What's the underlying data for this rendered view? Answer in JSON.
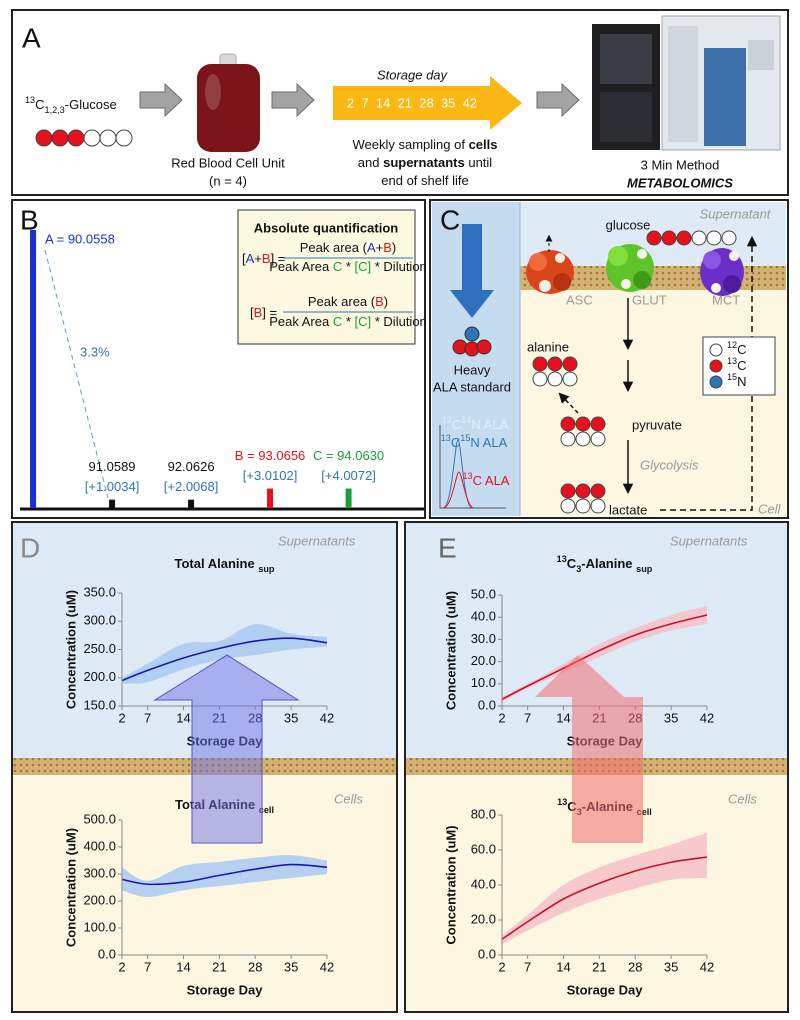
{
  "panel_a": {
    "label": "A",
    "glucose": [
      {
        "text": "13",
        "pos": "sup"
      },
      {
        "text": "C"
      },
      {
        "text": "1,2,3",
        "pos": "sub"
      },
      {
        "text": "-Glucose"
      }
    ],
    "rbc_unit": "Red Blood Cell Unit",
    "n": "(n = 4)",
    "storage_title": "Storage day",
    "storage_days": "2  7  14  21  28  35  42",
    "sampling": [
      [
        {
          "text": "Weekly sampling of "
        },
        {
          "text": "cells",
          "weight": "bold"
        }
      ],
      [
        {
          "text": "and "
        },
        {
          "text": "supernatants",
          "weight": "bold"
        },
        {
          "text": " until"
        }
      ],
      [
        {
          "text": "end of shelf life"
        }
      ]
    ],
    "method": "3 Min Method",
    "metabolomics": "METABOLOMICS"
  },
  "panel_b": {
    "label": "B",
    "box_title": "Absolute quantification",
    "formula_1": {
      "lhs": [
        {
          "text": "["
        },
        {
          "text": "A",
          "color": "#1a2fd0"
        },
        {
          "text": "+"
        },
        {
          "text": "B",
          "color": "#e8101c"
        },
        {
          "text": "] ="
        }
      ],
      "numerator": [
        {
          "text": "Peak area ("
        },
        {
          "text": "A",
          "color": "#1a2fd0"
        },
        {
          "text": "+"
        },
        {
          "text": "B",
          "color": "#e8101c"
        },
        {
          "text": ")"
        }
      ],
      "denominator": [
        {
          "text": "Peak Area "
        },
        {
          "text": "C",
          "color": "#1a9e3a"
        },
        {
          "text": " * "
        },
        {
          "text": "[C]",
          "color": "#1a9e3a"
        },
        {
          "text": " * Dilution"
        }
      ]
    },
    "formula_2": {
      "lhs": [
        {
          "text": "["
        },
        {
          "text": "B",
          "color": "#e8101c"
        },
        {
          "text": "] ="
        }
      ],
      "numerator": [
        {
          "text": "Peak area ("
        },
        {
          "text": "B",
          "color": "#e8101c"
        },
        {
          "text": ")"
        }
      ],
      "denominator": [
        {
          "text": "Peak Area "
        },
        {
          "text": "C",
          "color": "#1a9e3a"
        },
        {
          "text": " * "
        },
        {
          "text": "[C]",
          "color": "#1a9e3a"
        },
        {
          "text": " * Dilution"
        }
      ]
    },
    "ratio_label": "3.3%"
  },
  "panel_c": {
    "label": "C",
    "supernatant": "Supernatant",
    "glucose": "glucose",
    "asc": "ASC",
    "glut": "GLUT",
    "mct": "MCT",
    "alanine": "alanine",
    "pyruvate": "pyruvate",
    "glycolysis": "Glycolysis",
    "lactate": "lactate",
    "cell": "Cell",
    "heavy": "Heavy",
    "ala_standard": "ALA standard",
    "legend": [
      [
        {
          "text": "12",
          "pos": "sup"
        },
        {
          "text": "C"
        }
      ],
      [
        {
          "text": "13",
          "pos": "sup"
        },
        {
          "text": "C"
        }
      ],
      [
        {
          "text": "15",
          "pos": "sup"
        },
        {
          "text": "N"
        }
      ]
    ],
    "chromatogram": [
      [
        {
          "text": "12",
          "pos": "sup",
          "color": "#e4eef8"
        },
        {
          "text": "C",
          "color": "#e4eef8"
        },
        {
          "text": "14",
          "pos": "sup",
          "color": "#e4eef8"
        },
        {
          "text": "N ALA",
          "color": "#e4eef8"
        }
      ],
      [
        {
          "text": "13",
          "pos": "sup",
          "color": "#2e75b6"
        },
        {
          "text": "C",
          "color": "#2e75b6"
        },
        {
          "text": "15",
          "pos": "sup",
          "color": "#2e75b6"
        },
        {
          "text": "N ALA",
          "color": "#2e75b6"
        }
      ],
      [
        {
          "text": "13",
          "pos": "sup",
          "color": "#e8101c"
        },
        {
          "text": "C ALA",
          "color": "#e8101c"
        }
      ]
    ]
  },
  "panel_d": {
    "label": "D",
    "top_region": "Supernatants",
    "bottom_region": "Cells"
  },
  "panel_e": {
    "label": "E",
    "top_region": "Supernatants",
    "bottom_region": "Cells"
  },
  "chart_data": [
    {
      "type": "bar",
      "x": [
        90.0558,
        91.0589,
        92.0626,
        93.0656,
        94.063
      ],
      "x_labels": [
        "A = 90.0558",
        "91.0589",
        "92.0626",
        "B = 93.0656",
        "C = 94.0630"
      ],
      "offset_labels": [
        null,
        "[+1.0034]",
        "[+2.0068]",
        "[+3.0102]",
        "[+4.0072]"
      ],
      "values": [
        100,
        3,
        3,
        7,
        7
      ],
      "colors": [
        "#1a2fd0",
        "#111111",
        "#111111",
        "#e8101c",
        "#1a9e3a"
      ],
      "offset_color": "#2e75b6",
      "xlim": [
        89.89,
        94.97
      ],
      "ylim": [
        0,
        100
      ]
    },
    {
      "type": "line",
      "title": [
        {
          "text": "Total Alanine "
        },
        {
          "text": "sup",
          "pos": "sub"
        }
      ],
      "x": [
        2,
        7,
        14,
        21,
        28,
        35,
        42
      ],
      "values": [
        195,
        213,
        235,
        252,
        265,
        270,
        262
      ],
      "lower": [
        190,
        192,
        215,
        232,
        240,
        250,
        255
      ],
      "upper": [
        200,
        225,
        260,
        265,
        295,
        278,
        272
      ],
      "color": "#1a1aa6",
      "band_color": "#a9c9f2",
      "xlabel": "Storage Day",
      "ylabel": "Concentration (uM)",
      "xlim": [
        2,
        42
      ],
      "xticks": [
        2,
        7,
        14,
        21,
        28,
        35,
        42
      ],
      "ylim": [
        150,
        350
      ],
      "yticks": [
        {
          "value": 150,
          "label": "150.0"
        },
        {
          "value": 200,
          "label": "200.0"
        },
        {
          "value": 250,
          "label": "250.0"
        },
        {
          "value": 300,
          "label": "300.0"
        },
        {
          "value": 350,
          "label": "350.0"
        }
      ]
    },
    {
      "type": "line",
      "title": [
        {
          "text": "Total Alanine "
        },
        {
          "text": "cell",
          "pos": "sub"
        }
      ],
      "x": [
        2,
        7,
        14,
        21,
        28,
        35,
        42
      ],
      "values": [
        280,
        262,
        270,
        295,
        318,
        335,
        325
      ],
      "lower": [
        240,
        215,
        240,
        255,
        270,
        285,
        300
      ],
      "upper": [
        325,
        275,
        330,
        345,
        360,
        370,
        350
      ],
      "color": "#1a1aa6",
      "band_color": "#a9c9f2",
      "xlabel": "Storage Day",
      "ylabel": "Concentration (uM)",
      "xlim": [
        2,
        42
      ],
      "xticks": [
        2,
        7,
        14,
        21,
        28,
        35,
        42
      ],
      "ylim": [
        0,
        500
      ],
      "yticks": [
        {
          "value": 0,
          "label": "0.0"
        },
        {
          "value": 100,
          "label": "100.0"
        },
        {
          "value": 200,
          "label": "200.0"
        },
        {
          "value": 300,
          "label": "300.0"
        },
        {
          "value": 400,
          "label": "400.0"
        },
        {
          "value": 500,
          "label": "500.0"
        }
      ]
    },
    {
      "type": "line",
      "title": [
        {
          "text": "13",
          "pos": "sup"
        },
        {
          "text": "C"
        },
        {
          "text": "3",
          "pos": "sub"
        },
        {
          "text": "-Alanine "
        },
        {
          "text": "sup",
          "pos": "sub"
        }
      ],
      "x": [
        2,
        7,
        14,
        21,
        28,
        35,
        42
      ],
      "values": [
        3,
        9,
        17,
        25,
        32,
        37,
        41
      ],
      "lower": [
        2,
        8,
        15,
        22,
        29,
        34,
        37
      ],
      "upper": [
        4,
        10,
        19,
        28,
        35,
        41,
        45
      ],
      "color": "#c8102e",
      "band_color": "#f6c1c9",
      "xlabel": "Storage Day",
      "ylabel": "Concentration (uM)",
      "xlim": [
        2,
        42
      ],
      "xticks": [
        2,
        7,
        14,
        21,
        28,
        35,
        42
      ],
      "ylim": [
        0,
        50
      ],
      "yticks": [
        {
          "value": 0,
          "label": "0.0"
        },
        {
          "value": 10,
          "label": "10.0"
        },
        {
          "value": 20,
          "label": "20.0"
        },
        {
          "value": 30,
          "label": "30.0"
        },
        {
          "value": 40,
          "label": "40.0"
        },
        {
          "value": 50,
          "label": "50.0"
        }
      ]
    },
    {
      "type": "line",
      "title": [
        {
          "text": "13",
          "pos": "sup"
        },
        {
          "text": "C"
        },
        {
          "text": "3",
          "pos": "sub"
        },
        {
          "text": "-Alanine "
        },
        {
          "text": "cell",
          "pos": "sub"
        }
      ],
      "x": [
        2,
        7,
        14,
        21,
        28,
        35,
        42
      ],
      "values": [
        9,
        19,
        32,
        41,
        48,
        53,
        56
      ],
      "lower": [
        6,
        14,
        24,
        32,
        38,
        43,
        44
      ],
      "upper": [
        11,
        23,
        40,
        50,
        57,
        63,
        70
      ],
      "color": "#c8102e",
      "band_color": "#f6c1c9",
      "xlabel": "Storage Day",
      "ylabel": "Concentration (uM)",
      "xlim": [
        2,
        42
      ],
      "xticks": [
        2,
        7,
        14,
        21,
        28,
        35,
        42
      ],
      "ylim": [
        0,
        80
      ],
      "yticks": [
        {
          "value": 0,
          "label": "0.0"
        },
        {
          "value": 20,
          "label": "20.0"
        },
        {
          "value": 40,
          "label": "40.0"
        },
        {
          "value": 60,
          "label": "60.0"
        },
        {
          "value": 80,
          "label": "80.0"
        }
      ]
    }
  ]
}
